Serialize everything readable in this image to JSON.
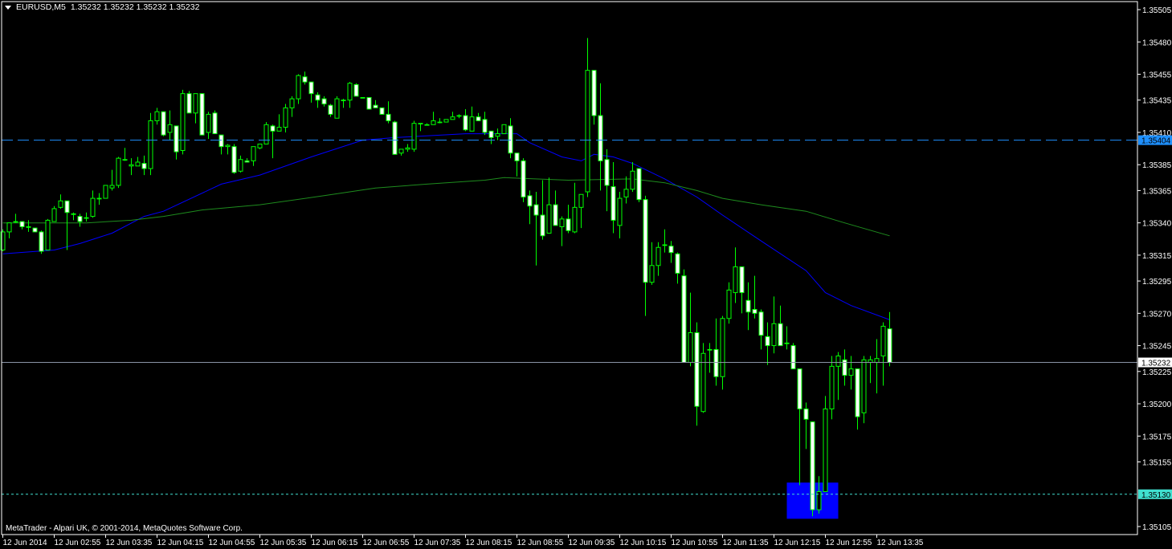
{
  "header": {
    "symbol": "EURUSD,M5",
    "ohlc": "1.35232 1.35232 1.35232 1.35232",
    "menu_icon": "triangle-down-icon"
  },
  "footer": {
    "copyright": "MetaTrader - Alpari UK, © 2001-2014, MetaQuotes Software Corp."
  },
  "colors": {
    "background": "#000000",
    "candle_outline": "#00ff00",
    "bear_body": "#ffffff",
    "bull_body": "#000000",
    "ma_fast": "#0000ff",
    "ma_slow": "#1e8c1e",
    "hline_dashed": "#1e90ff",
    "bid_line": "#8a94a6",
    "low_marker_line": "#40e0d0",
    "rectangle": "#0000ff"
  },
  "chart_data": {
    "type": "candlestick",
    "title": "EURUSD,M5",
    "ylim": [
      1.35105,
      1.35505
    ],
    "grid": false,
    "price_axis": {
      "labels": [
        "1.35505",
        "1.35480",
        "1.35455",
        "1.35435",
        "1.35410",
        "1.35385",
        "1.35365",
        "1.35340",
        "1.35315",
        "1.35295",
        "1.35270",
        "1.35245",
        "1.35225",
        "1.35200",
        "1.35175",
        "1.35155",
        "1.35105"
      ]
    },
    "time_axis": {
      "labels": [
        "12 Jun 2014",
        "12 Jun 02:55",
        "12 Jun 03:35",
        "12 Jun 04:15",
        "12 Jun 04:55",
        "12 Jun 05:35",
        "12 Jun 06:15",
        "12 Jun 06:55",
        "12 Jun 07:35",
        "12 Jun 08:15",
        "12 Jun 08:55",
        "12 Jun 09:35",
        "12 Jun 10:15",
        "12 Jun 10:55",
        "12 Jun 11:35",
        "12 Jun 12:15",
        "12 Jun 12:55",
        "12 Jun 13:35"
      ]
    },
    "columns": [
      "time",
      "open",
      "high",
      "low",
      "close"
    ],
    "candles": [
      [
        "02:15",
        1.35319,
        1.35335,
        1.35318,
        1.35333
      ],
      [
        "02:20",
        1.35333,
        1.3534,
        1.35328,
        1.3534
      ],
      [
        "02:25",
        1.35341,
        1.35347,
        1.3534,
        1.35341
      ],
      [
        "02:30",
        1.35341,
        1.35341,
        1.35335,
        1.35337
      ],
      [
        "02:35",
        1.35337,
        1.35342,
        1.35333,
        1.35337
      ],
      [
        "02:40",
        1.35336,
        1.35336,
        1.35333,
        1.35333
      ],
      [
        "02:45",
        1.35333,
        1.35334,
        1.35316,
        1.35318
      ],
      [
        "02:50",
        1.35319,
        1.35343,
        1.35319,
        1.35342
      ],
      [
        "02:55",
        1.35341,
        1.35353,
        1.35341,
        1.35351
      ],
      [
        "03:00",
        1.35352,
        1.35362,
        1.35351,
        1.35357
      ],
      [
        "03:05",
        1.35357,
        1.35357,
        1.35319,
        1.35348
      ],
      [
        "03:10",
        1.35347,
        1.35348,
        1.35342,
        1.35347
      ],
      [
        "03:15",
        1.35345,
        1.35347,
        1.35337,
        1.35341
      ],
      [
        "03:20",
        1.35344,
        1.35348,
        1.35341,
        1.35344
      ],
      [
        "03:25",
        1.35345,
        1.35365,
        1.35344,
        1.35359
      ],
      [
        "03:30",
        1.35359,
        1.35363,
        1.35354,
        1.35359
      ],
      [
        "03:35",
        1.35359,
        1.35369,
        1.35359,
        1.35369
      ],
      [
        "03:40",
        1.35367,
        1.35381,
        1.35365,
        1.35369
      ],
      [
        "03:45",
        1.35369,
        1.35391,
        1.35367,
        1.3539
      ],
      [
        "03:50",
        1.35389,
        1.35398,
        1.35388,
        1.35389
      ],
      [
        "03:55",
        1.35384,
        1.3539,
        1.35377,
        1.35385
      ],
      [
        "04:00",
        1.35384,
        1.35391,
        1.35384,
        1.35387
      ],
      [
        "04:05",
        1.35386,
        1.35392,
        1.35377,
        1.35382
      ],
      [
        "04:10",
        1.35382,
        1.35425,
        1.35377,
        1.35419
      ],
      [
        "04:15",
        1.35419,
        1.35429,
        1.35416,
        1.35426
      ],
      [
        "04:20",
        1.35426,
        1.35426,
        1.35407,
        1.35408
      ],
      [
        "04:25",
        1.3541,
        1.35427,
        1.35404,
        1.35416
      ],
      [
        "04:30",
        1.35415,
        1.35415,
        1.35389,
        1.35395
      ],
      [
        "04:35",
        1.35396,
        1.35443,
        1.35393,
        1.3544
      ],
      [
        "04:40",
        1.3544,
        1.35442,
        1.35425,
        1.35425
      ],
      [
        "04:45",
        1.35425,
        1.3544,
        1.35417,
        1.3544
      ],
      [
        "04:50",
        1.3544,
        1.3544,
        1.35408,
        1.35408
      ],
      [
        "04:55",
        1.3541,
        1.35426,
        1.35405,
        1.35424
      ],
      [
        "05:00",
        1.35425,
        1.35427,
        1.35409,
        1.35409
      ],
      [
        "05:05",
        1.35408,
        1.35408,
        1.35393,
        1.35399
      ],
      [
        "05:10",
        1.35399,
        1.35401,
        1.35393,
        1.354
      ],
      [
        "05:15",
        1.35399,
        1.35401,
        1.35378,
        1.35379
      ],
      [
        "05:20",
        1.3538,
        1.35392,
        1.35379,
        1.35389
      ],
      [
        "05:25",
        1.35388,
        1.3539,
        1.35387,
        1.35387
      ],
      [
        "05:30",
        1.35388,
        1.35399,
        1.35384,
        1.35399
      ],
      [
        "05:35",
        1.35398,
        1.35401,
        1.35397,
        1.35401
      ],
      [
        "05:40",
        1.35401,
        1.35418,
        1.35401,
        1.35416
      ],
      [
        "05:45",
        1.35415,
        1.35416,
        1.3539,
        1.35411
      ],
      [
        "05:50",
        1.35411,
        1.35424,
        1.35411,
        1.35414
      ],
      [
        "05:55",
        1.35414,
        1.35432,
        1.3541,
        1.35429
      ],
      [
        "06:00",
        1.35429,
        1.35438,
        1.35422,
        1.35436
      ],
      [
        "06:05",
        1.35436,
        1.35455,
        1.35432,
        1.35454
      ],
      [
        "06:10",
        1.35453,
        1.35457,
        1.35447,
        1.35449
      ],
      [
        "06:15",
        1.35449,
        1.35449,
        1.35433,
        1.3544
      ],
      [
        "06:20",
        1.35439,
        1.35441,
        1.35429,
        1.35435
      ],
      [
        "06:25",
        1.35436,
        1.35438,
        1.3543,
        1.35432
      ],
      [
        "06:30",
        1.35431,
        1.35432,
        1.35422,
        1.35424
      ],
      [
        "06:35",
        1.35421,
        1.35438,
        1.35421,
        1.35436
      ],
      [
        "06:40",
        1.35435,
        1.35436,
        1.35429,
        1.35435
      ],
      [
        "06:45",
        1.35435,
        1.35449,
        1.35429,
        1.35448
      ],
      [
        "06:50",
        1.35447,
        1.35448,
        1.35438,
        1.35438
      ],
      [
        "06:55",
        1.35437,
        1.35437,
        1.35437,
        1.35437
      ],
      [
        "07:00",
        1.35437,
        1.35437,
        1.35428,
        1.35428
      ],
      [
        "07:05",
        1.35431,
        1.35435,
        1.35429,
        1.35429
      ],
      [
        "07:10",
        1.35429,
        1.35429,
        1.35424,
        1.35424
      ],
      [
        "07:15",
        1.35424,
        1.35434,
        1.35417,
        1.35419
      ],
      [
        "07:20",
        1.35418,
        1.35419,
        1.35393,
        1.35393
      ],
      [
        "07:25",
        1.35394,
        1.35397,
        1.35392,
        1.35397
      ],
      [
        "07:30",
        1.35397,
        1.35401,
        1.35395,
        1.35398
      ],
      [
        "07:35",
        1.35397,
        1.35419,
        1.35395,
        1.35417
      ],
      [
        "07:40",
        1.35417,
        1.35417,
        1.35411,
        1.35417
      ],
      [
        "07:45",
        1.35416,
        1.35417,
        1.35416,
        1.35416
      ],
      [
        "07:50",
        1.35416,
        1.35426,
        1.35416,
        1.35419
      ],
      [
        "07:55",
        1.35418,
        1.35421,
        1.35417,
        1.35418
      ],
      [
        "08:00",
        1.35418,
        1.3542,
        1.35418,
        1.3542
      ],
      [
        "08:05",
        1.3542,
        1.35426,
        1.3542,
        1.35422
      ],
      [
        "08:10",
        1.35423,
        1.35424,
        1.35421,
        1.35423
      ],
      [
        "08:15",
        1.35423,
        1.35428,
        1.35411,
        1.35412
      ],
      [
        "08:20",
        1.35411,
        1.3543,
        1.35411,
        1.35422
      ],
      [
        "08:25",
        1.35422,
        1.35425,
        1.35419,
        1.35419
      ],
      [
        "08:30",
        1.3542,
        1.35426,
        1.35408,
        1.3541
      ],
      [
        "08:35",
        1.35411,
        1.35411,
        1.35401,
        1.35406
      ],
      [
        "08:40",
        1.35407,
        1.35413,
        1.35404,
        1.35409
      ],
      [
        "08:45",
        1.35409,
        1.35416,
        1.35409,
        1.35416
      ],
      [
        "08:50",
        1.35415,
        1.35421,
        1.3539,
        1.35394
      ],
      [
        "08:55",
        1.35394,
        1.35394,
        1.35376,
        1.35388
      ],
      [
        "09:00",
        1.35388,
        1.3539,
        1.35356,
        1.3536
      ],
      [
        "09:05",
        1.35361,
        1.35365,
        1.35339,
        1.35353
      ],
      [
        "09:10",
        1.35354,
        1.35364,
        1.35307,
        1.35346
      ],
      [
        "09:15",
        1.35346,
        1.35373,
        1.35327,
        1.3533
      ],
      [
        "09:20",
        1.35332,
        1.35375,
        1.35332,
        1.35354
      ],
      [
        "09:25",
        1.35354,
        1.35365,
        1.35338,
        1.35338
      ],
      [
        "09:30",
        1.35337,
        1.35345,
        1.35322,
        1.35343
      ],
      [
        "09:35",
        1.35343,
        1.35354,
        1.35332,
        1.35334
      ],
      [
        "09:40",
        1.35333,
        1.35371,
        1.35332,
        1.35352
      ],
      [
        "09:45",
        1.35352,
        1.35362,
        1.35336,
        1.35362
      ],
      [
        "09:50",
        1.35364,
        1.35483,
        1.3536,
        1.35458
      ],
      [
        "09:55",
        1.35458,
        1.35458,
        1.35416,
        1.35423
      ],
      [
        "10:00",
        1.35423,
        1.35448,
        1.35365,
        1.35388
      ],
      [
        "10:05",
        1.35389,
        1.35397,
        1.35349,
        1.35369
      ],
      [
        "10:10",
        1.35368,
        1.35387,
        1.35332,
        1.35342
      ],
      [
        "10:15",
        1.35338,
        1.35364,
        1.35328,
        1.35359
      ],
      [
        "10:20",
        1.3536,
        1.35376,
        1.35355,
        1.35366
      ],
      [
        "10:25",
        1.35366,
        1.35387,
        1.35364,
        1.3538
      ],
      [
        "10:30",
        1.35382,
        1.35382,
        1.35356,
        1.35358
      ],
      [
        "10:35",
        1.35358,
        1.35361,
        1.35268,
        1.35294
      ],
      [
        "10:40",
        1.35294,
        1.35325,
        1.35292,
        1.35307
      ],
      [
        "10:45",
        1.35307,
        1.35325,
        1.35299,
        1.35321
      ],
      [
        "10:50",
        1.35323,
        1.35335,
        1.35317,
        1.35323
      ],
      [
        "10:55",
        1.35322,
        1.35326,
        1.35309,
        1.35317
      ],
      [
        "11:00",
        1.35316,
        1.35317,
        1.35293,
        1.35301
      ],
      [
        "11:05",
        1.35299,
        1.35304,
        1.35232,
        1.35232
      ],
      [
        "11:10",
        1.35232,
        1.35286,
        1.35229,
        1.35255
      ],
      [
        "11:15",
        1.35255,
        1.35263,
        1.35183,
        1.35198
      ],
      [
        "11:20",
        1.35194,
        1.35247,
        1.35193,
        1.35239
      ],
      [
        "11:25",
        1.35242,
        1.35247,
        1.35224,
        1.35242
      ],
      [
        "11:30",
        1.35242,
        1.35266,
        1.35214,
        1.35221
      ],
      [
        "11:35",
        1.35221,
        1.35268,
        1.35211,
        1.35266
      ],
      [
        "11:40",
        1.35266,
        1.35294,
        1.35262,
        1.35288
      ],
      [
        "11:45",
        1.35286,
        1.35321,
        1.35278,
        1.35306
      ],
      [
        "11:50",
        1.35306,
        1.35306,
        1.3527,
        1.35286
      ],
      [
        "11:55",
        1.3528,
        1.35294,
        1.35257,
        1.35271
      ],
      [
        "12:00",
        1.35273,
        1.35299,
        1.35266,
        1.3527
      ],
      [
        "12:05",
        1.35271,
        1.35273,
        1.35242,
        1.35253
      ],
      [
        "12:10",
        1.35252,
        1.35263,
        1.3523,
        1.35245
      ],
      [
        "12:15",
        1.35245,
        1.35283,
        1.35239,
        1.35262
      ],
      [
        "12:20",
        1.35262,
        1.35276,
        1.35245,
        1.35245
      ],
      [
        "12:25",
        1.35247,
        1.3526,
        1.35242,
        1.35247
      ],
      [
        "12:30",
        1.35245,
        1.35247,
        1.35227,
        1.35227
      ],
      [
        "12:35",
        1.35227,
        1.35227,
        1.35137,
        1.35196
      ],
      [
        "12:40",
        1.35196,
        1.35201,
        1.35165,
        1.35188
      ],
      [
        "12:45",
        1.35186,
        1.35186,
        1.35113,
        1.35118
      ],
      [
        "12:50",
        1.35118,
        1.35144,
        1.35115,
        1.35132
      ],
      [
        "12:55",
        1.35132,
        1.35206,
        1.35132,
        1.35196
      ],
      [
        "13:00",
        1.35196,
        1.35237,
        1.35188,
        1.35229
      ],
      [
        "13:05",
        1.35229,
        1.3524,
        1.35203,
        1.35237
      ],
      [
        "13:10",
        1.35234,
        1.35242,
        1.35214,
        1.35222
      ],
      [
        "13:15",
        1.35222,
        1.35237,
        1.35211,
        1.35227
      ],
      [
        "13:20",
        1.35227,
        1.35227,
        1.3518,
        1.3519
      ],
      [
        "13:25",
        1.35193,
        1.35237,
        1.35185,
        1.35234
      ],
      [
        "13:30",
        1.35232,
        1.35237,
        1.35216,
        1.35234
      ],
      [
        "13:35",
        1.35232,
        1.3525,
        1.35208,
        1.35235
      ],
      [
        "13:40",
        1.35237,
        1.35263,
        1.35214,
        1.3526
      ],
      [
        "13:45",
        1.35258,
        1.35271,
        1.35229,
        1.35232
      ]
    ],
    "moving_averages": [
      {
        "color_key": "ma_fast",
        "points": [
          [
            "02:15",
            1.35316
          ],
          [
            "02:55",
            1.35319
          ],
          [
            "03:15",
            1.35324
          ],
          [
            "03:40",
            1.35332
          ],
          [
            "04:05",
            1.35345
          ],
          [
            "04:20",
            1.35349
          ],
          [
            "05:05",
            1.3537
          ],
          [
            "05:35",
            1.35377
          ],
          [
            "06:15",
            1.35391
          ],
          [
            "06:55",
            1.35404
          ],
          [
            "07:20",
            1.35406
          ],
          [
            "08:15",
            1.35409
          ],
          [
            "08:55",
            1.35409
          ],
          [
            "09:05",
            1.35402
          ],
          [
            "09:30",
            1.35391
          ],
          [
            "09:45",
            1.35388
          ],
          [
            "09:55",
            1.35393
          ],
          [
            "10:10",
            1.35391
          ],
          [
            "10:25",
            1.35386
          ],
          [
            "10:50",
            1.35374
          ],
          [
            "11:15",
            1.3536
          ],
          [
            "11:35",
            1.35346
          ],
          [
            "12:05",
            1.35326
          ],
          [
            "12:40",
            1.35303
          ],
          [
            "12:55",
            1.35286
          ],
          [
            "13:15",
            1.35276
          ],
          [
            "13:45",
            1.35265
          ]
        ]
      },
      {
        "color_key": "ma_slow",
        "points": [
          [
            "02:15",
            1.3534
          ],
          [
            "03:20",
            1.3534
          ],
          [
            "03:55",
            1.35342
          ],
          [
            "04:20",
            1.35345
          ],
          [
            "04:50",
            1.3535
          ],
          [
            "05:35",
            1.35354
          ],
          [
            "06:25",
            1.35361
          ],
          [
            "07:05",
            1.35367
          ],
          [
            "07:45",
            1.3537
          ],
          [
            "08:30",
            1.35373
          ],
          [
            "08:45",
            1.35375
          ],
          [
            "09:35",
            1.35373
          ],
          [
            "10:25",
            1.35374
          ],
          [
            "10:50",
            1.35371
          ],
          [
            "11:15",
            1.35365
          ],
          [
            "11:35",
            1.35359
          ],
          [
            "12:05",
            1.35354
          ],
          [
            "12:40",
            1.35349
          ],
          [
            "13:10",
            1.3534
          ],
          [
            "13:45",
            1.3533
          ]
        ]
      }
    ],
    "horizontal_lines": [
      {
        "price": "1.35404",
        "style": "dashed",
        "color_key": "hline_dashed",
        "label_bg": "#1e90ff",
        "label_fg": "#000000"
      },
      {
        "price": "1.35232",
        "style": "solid",
        "color_key": "bid_line",
        "label_bg": "#ffffff",
        "label_fg": "#000000"
      },
      {
        "price": "1.35130",
        "style": "dotted",
        "color_key": "low_marker_line",
        "label_bg": "#40e0d0",
        "label_fg": "#000000"
      }
    ],
    "rectangle": {
      "time_from": "12:25",
      "time_to": "13:05",
      "price_high": 1.35139,
      "price_low": 1.35111,
      "color_key": "rectangle"
    }
  }
}
